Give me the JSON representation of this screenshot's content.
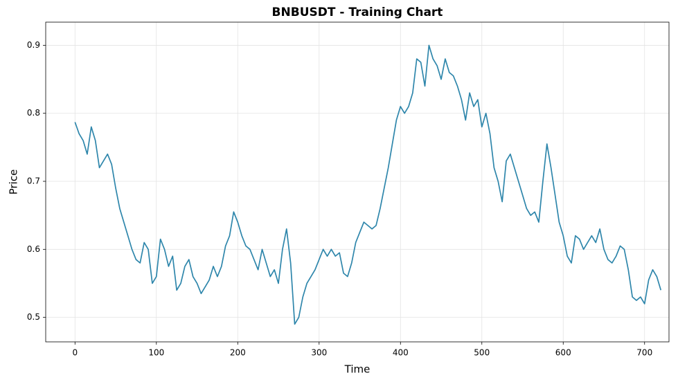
{
  "chart_data": {
    "type": "line",
    "title": "BNBUSDT - Training Chart",
    "x_label": "Time",
    "y_label": "Price",
    "x": [
      0,
      5,
      10,
      15,
      20,
      25,
      30,
      35,
      40,
      45,
      50,
      55,
      60,
      65,
      70,
      75,
      80,
      85,
      90,
      95,
      100,
      105,
      110,
      115,
      120,
      125,
      130,
      135,
      140,
      145,
      150,
      155,
      160,
      165,
      170,
      175,
      180,
      185,
      190,
      195,
      200,
      205,
      210,
      215,
      220,
      225,
      230,
      235,
      240,
      245,
      250,
      255,
      260,
      265,
      270,
      275,
      280,
      285,
      290,
      295,
      300,
      305,
      310,
      315,
      320,
      325,
      330,
      335,
      340,
      345,
      350,
      355,
      360,
      365,
      370,
      375,
      380,
      385,
      390,
      395,
      400,
      405,
      410,
      415,
      420,
      425,
      430,
      435,
      440,
      445,
      450,
      455,
      460,
      465,
      470,
      475,
      480,
      485,
      490,
      495,
      500,
      505,
      510,
      515,
      520,
      525,
      530,
      535,
      540,
      545,
      550,
      555,
      560,
      565,
      570,
      575,
      580,
      585,
      590,
      595,
      600,
      605,
      610,
      615,
      620,
      625,
      630,
      635,
      640,
      645,
      650,
      655,
      660,
      665,
      670,
      675,
      680,
      685,
      690,
      695,
      700,
      705,
      710,
      715,
      720
    ],
    "values": [
      0.787,
      0.77,
      0.76,
      0.74,
      0.78,
      0.76,
      0.72,
      0.73,
      0.74,
      0.725,
      0.69,
      0.66,
      0.64,
      0.62,
      0.6,
      0.585,
      0.58,
      0.61,
      0.6,
      0.55,
      0.56,
      0.615,
      0.6,
      0.575,
      0.59,
      0.54,
      0.55,
      0.575,
      0.585,
      0.56,
      0.55,
      0.535,
      0.545,
      0.555,
      0.575,
      0.56,
      0.575,
      0.605,
      0.62,
      0.655,
      0.64,
      0.62,
      0.605,
      0.6,
      0.585,
      0.57,
      0.6,
      0.58,
      0.56,
      0.57,
      0.55,
      0.6,
      0.63,
      0.58,
      0.49,
      0.5,
      0.53,
      0.55,
      0.56,
      0.57,
      0.585,
      0.6,
      0.59,
      0.6,
      0.59,
      0.595,
      0.565,
      0.56,
      0.58,
      0.61,
      0.625,
      0.64,
      0.635,
      0.63,
      0.635,
      0.66,
      0.69,
      0.72,
      0.755,
      0.79,
      0.81,
      0.8,
      0.81,
      0.83,
      0.88,
      0.875,
      0.84,
      0.9,
      0.88,
      0.87,
      0.85,
      0.88,
      0.86,
      0.855,
      0.84,
      0.82,
      0.79,
      0.83,
      0.81,
      0.82,
      0.78,
      0.8,
      0.77,
      0.72,
      0.7,
      0.67,
      0.73,
      0.74,
      0.72,
      0.7,
      0.68,
      0.66,
      0.65,
      0.655,
      0.64,
      0.7,
      0.755,
      0.72,
      0.68,
      0.64,
      0.62,
      0.59,
      0.58,
      0.62,
      0.615,
      0.6,
      0.61,
      0.62,
      0.61,
      0.63,
      0.6,
      0.585,
      0.58,
      0.59,
      0.605,
      0.6,
      0.57,
      0.53,
      0.525,
      0.53,
      0.52,
      0.555,
      0.57,
      0.56,
      0.54
    ],
    "color": "#2e86ab",
    "xlim": [
      -36,
      730
    ],
    "xticks": [
      0,
      100,
      200,
      300,
      400,
      500,
      600,
      700
    ],
    "ylim": [
      0.464,
      0.934
    ],
    "yticks": [
      0.5,
      0.6,
      0.7,
      0.8,
      0.9
    ],
    "grid": true
  }
}
